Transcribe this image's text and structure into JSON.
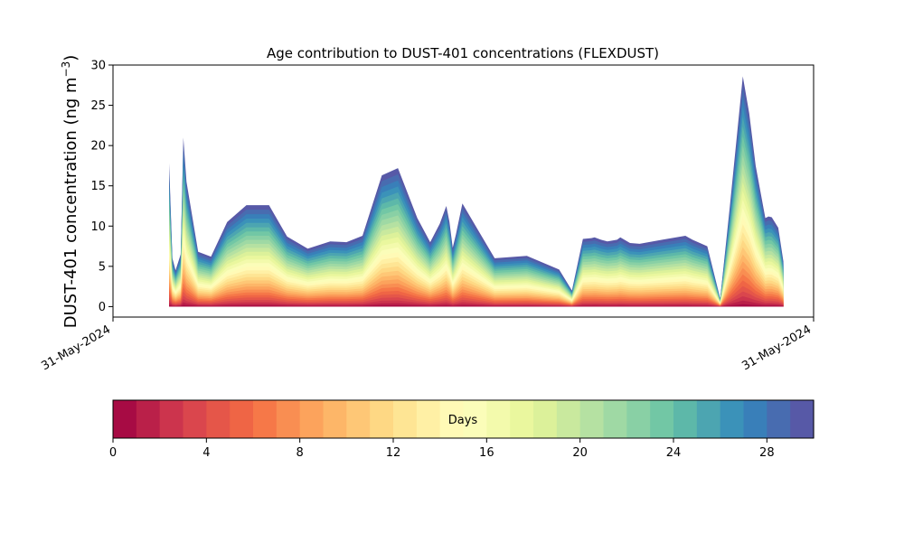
{
  "chart_data": {
    "type": "area",
    "title": "Age contribution to DUST-401 concentrations (FLEXDUST)",
    "ylabel_main": "DUST-401 concentration (ng m",
    "ylabel_sup": "−3",
    "ylabel_close": ")",
    "xlabel": "",
    "ylim": [
      -1.3,
      30
    ],
    "yticks": [
      0,
      5,
      10,
      15,
      20,
      25,
      30
    ],
    "xticks": [
      "31-May-2024",
      "31-May-2024"
    ],
    "stacking": "cumulative by particle age (0–30 days)",
    "envelope": {
      "description": "total concentration over time (30-day age band)",
      "x": [
        0.045,
        0.05,
        0.055,
        0.063,
        0.067,
        0.072,
        0.09,
        0.11,
        0.135,
        0.165,
        0.2,
        0.228,
        0.26,
        0.295,
        0.32,
        0.345,
        0.375,
        0.4,
        0.43,
        0.45,
        0.465,
        0.475,
        0.48,
        0.485,
        0.49,
        0.5,
        0.55,
        0.6,
        0.65,
        0.67,
        0.687,
        0.7,
        0.705,
        0.715,
        0.725,
        0.74,
        0.745,
        0.76,
        0.775,
        0.81,
        0.846,
        0.857,
        0.88,
        0.9,
        0.915,
        0.935,
        0.945,
        0.955,
        0.97,
        0.975,
        0.98,
        0.99,
        0.998
      ],
      "y": [
        17.8,
        6.0,
        4.5,
        6.5,
        21.0,
        15.5,
        6.8,
        6.2,
        10.5,
        12.6,
        12.6,
        8.7,
        7.2,
        8.1,
        8.0,
        8.8,
        16.3,
        17.2,
        11.0,
        8.0,
        10.3,
        12.5,
        10.5,
        7.3,
        9.0,
        12.8,
        6.0,
        6.3,
        4.6,
        2.0,
        8.4,
        8.5,
        8.6,
        8.3,
        8.1,
        8.3,
        8.6,
        7.9,
        7.8,
        8.3,
        8.8,
        8.3,
        7.5,
        1.0,
        12.5,
        28.6,
        24.0,
        17.5,
        11.0,
        11.2,
        11.1,
        9.8,
        5.6
      ]
    },
    "colorbar": {
      "label": "Days",
      "range": [
        0,
        30
      ],
      "ticks": [
        0,
        4,
        8,
        12,
        16,
        20,
        24,
        28
      ],
      "bins": 30,
      "colormap": "Spectral",
      "colors": [
        "#9e0142",
        "#d53e4f",
        "#f46d43",
        "#fdae61",
        "#fee08b",
        "#ffffbf",
        "#e6f598",
        "#abdda4",
        "#66c2a5",
        "#3288bd",
        "#5e4fa2"
      ]
    }
  }
}
